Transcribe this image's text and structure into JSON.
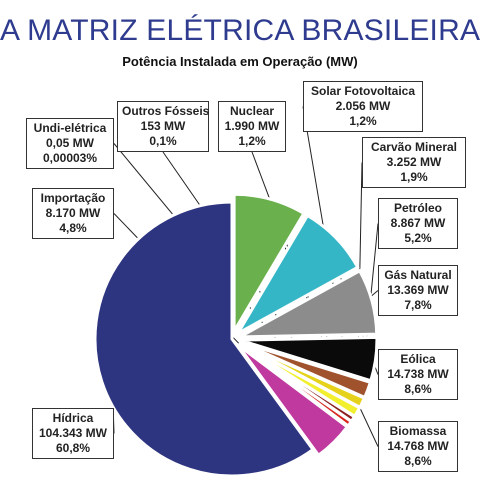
{
  "title": "A MATRIZ ELÉTRICA BRASILEIRA",
  "subtitle": "Potência Instalada em Operação (MW)",
  "chart_data": {
    "type": "pie",
    "unit": "MW",
    "slices": [
      {
        "name": "Hídrica",
        "value": 104343,
        "value_label": "104.343 MW",
        "percent_label": "60,8%",
        "color": "#2e3580"
      },
      {
        "name": "Biomassa",
        "value": 14768,
        "value_label": "14.768 MW",
        "percent_label": "8,6%",
        "color": "#6ab04c"
      },
      {
        "name": "Eólica",
        "value": 14738,
        "value_label": "14.738 MW",
        "percent_label": "8,6%",
        "color": "#35b6c6"
      },
      {
        "name": "Gás Natural",
        "value": 13369,
        "value_label": "13.369 MW",
        "percent_label": "7,8%",
        "color": "#8c8c8c"
      },
      {
        "name": "Petróleo",
        "value": 8867,
        "value_label": "8.867 MW",
        "percent_label": "5,2%",
        "color": "#0a0a0a"
      },
      {
        "name": "Carvão Mineral",
        "value": 3252,
        "value_label": "3.252 MW",
        "percent_label": "1,9%",
        "color": "#a0522d"
      },
      {
        "name": "Solar Fotovoltaica",
        "value": 2056,
        "value_label": "2.056 MW",
        "percent_label": "1,2%",
        "color": "#e6d21a"
      },
      {
        "name": "Nuclear",
        "value": 1990,
        "value_label": "1.990 MW",
        "percent_label": "1,2%",
        "color": "#f2ef30"
      },
      {
        "name": "Outros Fósseis",
        "value": 153,
        "value_label": "153 MW",
        "percent_label": "0,1%",
        "color": "#8b2020"
      },
      {
        "name": "Undi-elétrica",
        "value": 0.05,
        "value_label": "0,05 MW",
        "percent_label": "0,00003%",
        "color": "#d7261e"
      },
      {
        "name": "Importação",
        "value": 8170,
        "value_label": "8.170 MW",
        "percent_label": "4,8%",
        "color": "#c0399f"
      }
    ]
  }
}
